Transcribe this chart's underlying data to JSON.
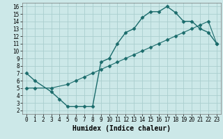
{
  "xlabel": "Humidex (Indice chaleur)",
  "bg_color": "#cce8e8",
  "grid_color": "#aacece",
  "line_color": "#1a6b6b",
  "xlim": [
    -0.5,
    23.5
  ],
  "ylim": [
    1.5,
    16.5
  ],
  "xticks": [
    0,
    1,
    2,
    3,
    4,
    5,
    6,
    7,
    8,
    9,
    10,
    11,
    12,
    13,
    14,
    15,
    16,
    17,
    18,
    19,
    20,
    21,
    22,
    23
  ],
  "yticks": [
    2,
    3,
    4,
    5,
    6,
    7,
    8,
    9,
    10,
    11,
    12,
    13,
    14,
    15,
    16
  ],
  "curve1_x": [
    0,
    1,
    3,
    4,
    5,
    6,
    7,
    8,
    9,
    10,
    11,
    12,
    13,
    14,
    15,
    16,
    17,
    18,
    19,
    20,
    21,
    22,
    23
  ],
  "curve1_y": [
    7,
    6,
    4.5,
    3.5,
    2.5,
    2.5,
    2.5,
    2.5,
    8.5,
    9,
    11,
    12.5,
    13,
    14.5,
    15.3,
    15.3,
    16,
    15.2,
    14,
    14,
    13,
    12.5,
    11
  ],
  "curve2_x": [
    0,
    1,
    3,
    5,
    6,
    7,
    8,
    9,
    10,
    11,
    12,
    13,
    14,
    15,
    16,
    17,
    18,
    19,
    20,
    21,
    22,
    23
  ],
  "curve2_y": [
    5,
    5,
    5,
    5.5,
    6.0,
    6.5,
    7.0,
    7.5,
    8.0,
    8.5,
    9.0,
    9.5,
    10.0,
    10.5,
    11.0,
    11.5,
    12.0,
    12.5,
    13.0,
    13.5,
    14.0,
    11.0
  ],
  "marker": "D",
  "marker_size": 2.5,
  "linewidth1": 1.0,
  "linewidth2": 0.8,
  "tick_fontsize": 5.5,
  "xlabel_fontsize": 7
}
